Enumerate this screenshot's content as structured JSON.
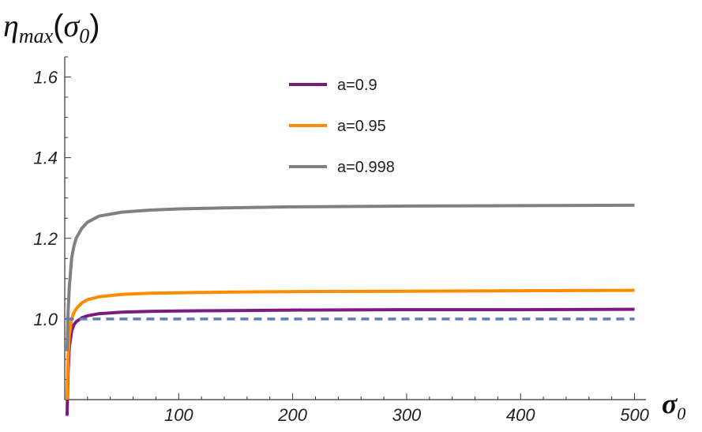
{
  "chart_data": {
    "type": "line",
    "title": "",
    "ylabel": {
      "base": "η",
      "sub": "max",
      "arg_base": "σ",
      "arg_sub": "0"
    },
    "xlabel": {
      "base": "σ",
      "sub": "0"
    },
    "xlim": [
      0,
      510
    ],
    "ylim": [
      0.8,
      1.65
    ],
    "x_origin": 0,
    "y_origin": 0.8,
    "xticks": [
      100,
      200,
      300,
      400,
      500
    ],
    "xtick_labels": [
      "100",
      "200",
      "300",
      "400",
      "500"
    ],
    "yticks": [
      1.0,
      1.2,
      1.4,
      1.6
    ],
    "ytick_labels": [
      "1.0",
      "1.2",
      "1.4",
      "1.6"
    ],
    "grid": false,
    "legend_position": "top-center",
    "series": [
      {
        "name": "a=0.9",
        "color": "#7B1B82",
        "dash": false,
        "x": [
          2,
          3,
          4,
          6,
          8,
          10,
          15,
          20,
          30,
          50,
          75,
          100,
          150,
          200,
          300,
          400,
          500
        ],
        "y": [
          0.76,
          0.87,
          0.93,
          0.97,
          0.985,
          0.993,
          1.003,
          1.008,
          1.013,
          1.017,
          1.019,
          1.02,
          1.021,
          1.022,
          1.023,
          1.023,
          1.024
        ]
      },
      {
        "name": "a=0.95",
        "color": "#FF8C00",
        "dash": false,
        "x": [
          2,
          3,
          4,
          6,
          8,
          10,
          15,
          20,
          30,
          50,
          75,
          100,
          150,
          200,
          300,
          400,
          500
        ],
        "y": [
          0.8,
          0.91,
          0.96,
          1.0,
          1.015,
          1.025,
          1.04,
          1.048,
          1.055,
          1.061,
          1.064,
          1.065,
          1.067,
          1.068,
          1.069,
          1.07,
          1.071
        ]
      },
      {
        "name": "a=0.998",
        "color": "#808080",
        "dash": false,
        "x": [
          2,
          3,
          4,
          6,
          8,
          10,
          15,
          20,
          30,
          50,
          75,
          100,
          150,
          200,
          300,
          400,
          500
        ],
        "y": [
          0.92,
          1.02,
          1.08,
          1.15,
          1.18,
          1.2,
          1.225,
          1.24,
          1.255,
          1.265,
          1.27,
          1.273,
          1.276,
          1.278,
          1.28,
          1.281,
          1.282
        ]
      },
      {
        "name": "",
        "color": "#5B7FB8",
        "dash": true,
        "x": [
          1,
          500
        ],
        "y": [
          1.0,
          1.0
        ]
      }
    ],
    "legend": [
      {
        "label": "a=0.9",
        "color": "#7B1B82"
      },
      {
        "label": "a=0.95",
        "color": "#FF8C00"
      },
      {
        "label": "a=0.998",
        "color": "#808080"
      }
    ]
  }
}
